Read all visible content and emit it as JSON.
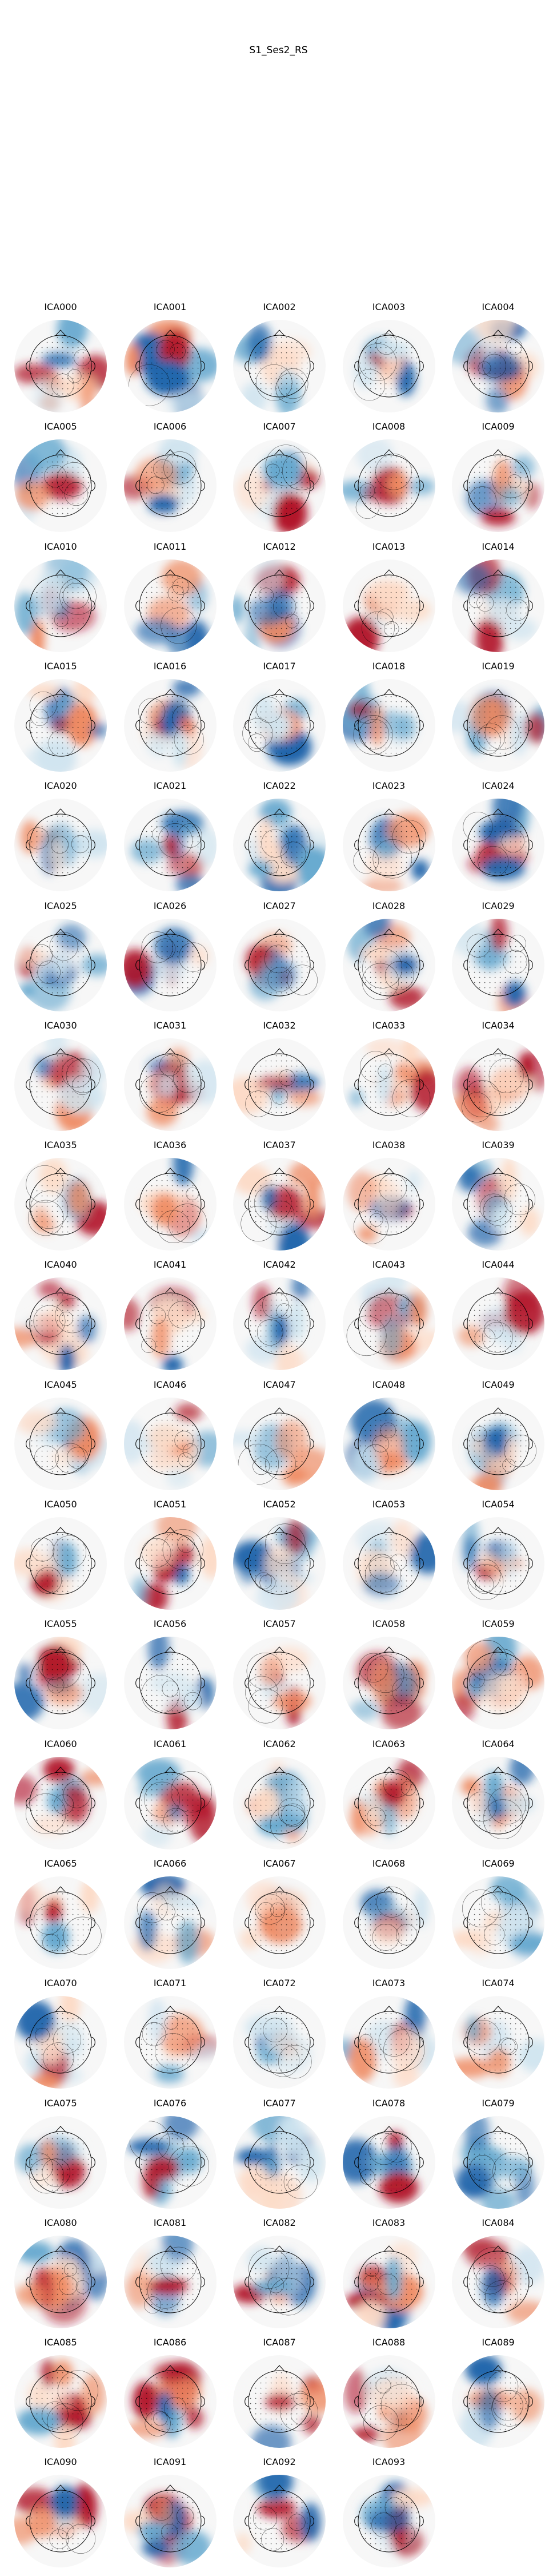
{
  "title": "S1_Ses2_RS",
  "components": [
    "ICA000",
    "ICA001",
    "ICA002",
    "ICA003",
    "ICA004",
    "ICA005",
    "ICA006",
    "ICA007",
    "ICA008",
    "ICA009",
    "ICA010",
    "ICA011",
    "ICA012",
    "ICA013",
    "ICA014",
    "ICA015",
    "ICA016",
    "ICA017",
    "ICA018",
    "ICA019",
    "ICA020",
    "ICA021",
    "ICA022",
    "ICA023",
    "ICA024",
    "ICA025",
    "ICA026",
    "ICA027",
    "ICA028",
    "ICA029",
    "ICA030",
    "ICA031",
    "ICA032",
    "ICA033",
    "ICA034",
    "ICA035",
    "ICA036",
    "ICA037",
    "ICA038",
    "ICA039",
    "ICA040",
    "ICA041",
    "ICA042",
    "ICA043",
    "ICA044",
    "ICA045",
    "ICA046",
    "ICA047",
    "ICA048",
    "ICA049",
    "ICA050",
    "ICA051",
    "ICA052",
    "ICA053",
    "ICA054",
    "ICA055",
    "ICA056",
    "ICA057",
    "ICA058",
    "ICA059",
    "ICA060",
    "ICA061",
    "ICA062",
    "ICA063",
    "ICA064",
    "ICA065",
    "ICA066",
    "ICA067",
    "ICA068",
    "ICA069",
    "ICA070",
    "ICA071",
    "ICA072",
    "ICA073",
    "ICA074",
    "ICA075",
    "ICA076",
    "ICA077",
    "ICA078",
    "ICA079",
    "ICA080",
    "ICA081",
    "ICA082",
    "ICA083",
    "ICA084",
    "ICA085",
    "ICA086",
    "ICA087",
    "ICA088",
    "ICA089",
    "ICA090",
    "ICA091",
    "ICA092",
    "ICA093"
  ],
  "colors": {
    "positive_strong": "#b2182b",
    "positive_mid": "#ef8a62",
    "positive_light": "#fddbc7",
    "neutral": "#f7f7f7",
    "negative_light": "#d1e5f0",
    "negative_mid": "#67a9cf",
    "negative_strong": "#2166ac",
    "outline": "#000000"
  }
}
